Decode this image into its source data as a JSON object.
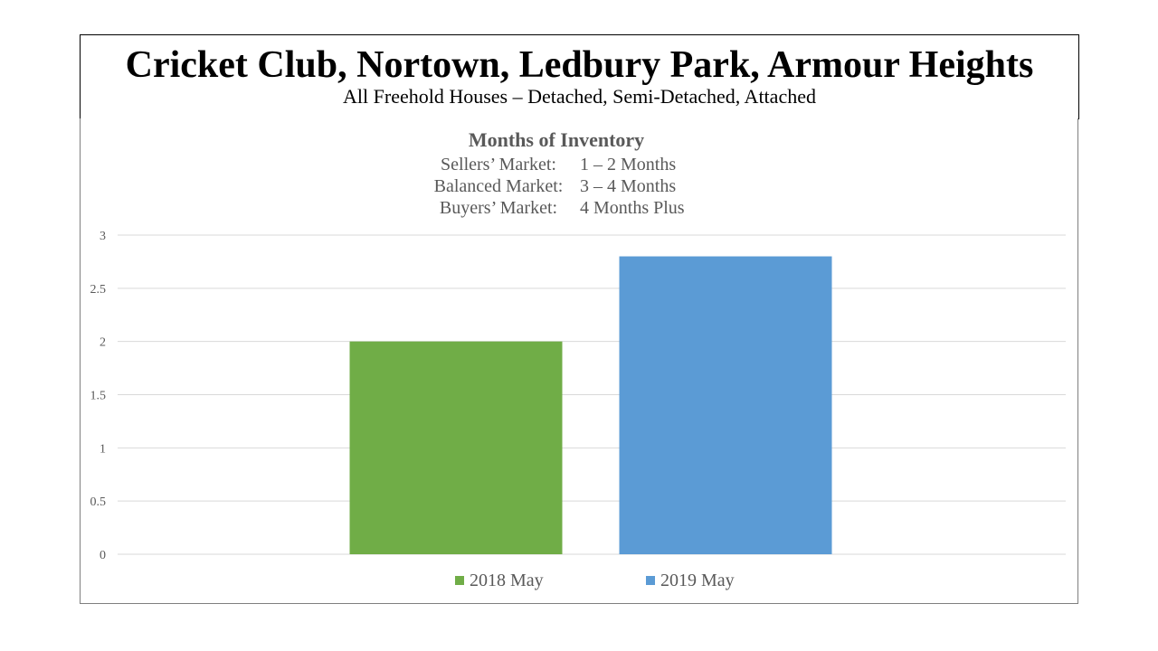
{
  "header": {
    "title": "Cricket Club, Nortown, Ledbury Park, Armour Heights",
    "subtitle": "All Freehold Houses – Detached, Semi-Detached, Attached"
  },
  "chart_data": {
    "type": "bar",
    "title": "Months of Inventory",
    "market_definitions": [
      {
        "label": "Sellers’ Market:",
        "range": "1 – 2 Months"
      },
      {
        "label": "Balanced Market:",
        "range": "3 – 4 Months"
      },
      {
        "label": "Buyers’ Market:",
        "range": "4 Months Plus"
      }
    ],
    "categories": [
      ""
    ],
    "series": [
      {
        "name": "2018 May",
        "values": [
          2.0
        ],
        "color": "#70ad47"
      },
      {
        "name": "2019 May",
        "values": [
          2.8
        ],
        "color": "#5b9bd5"
      }
    ],
    "ylim": [
      0,
      3
    ],
    "yticks": [
      "0",
      "0.5",
      "1",
      "1.5",
      "2",
      "2.5",
      "3"
    ],
    "xlabel": "",
    "ylabel": "",
    "grid": true,
    "legend_position": "bottom"
  }
}
